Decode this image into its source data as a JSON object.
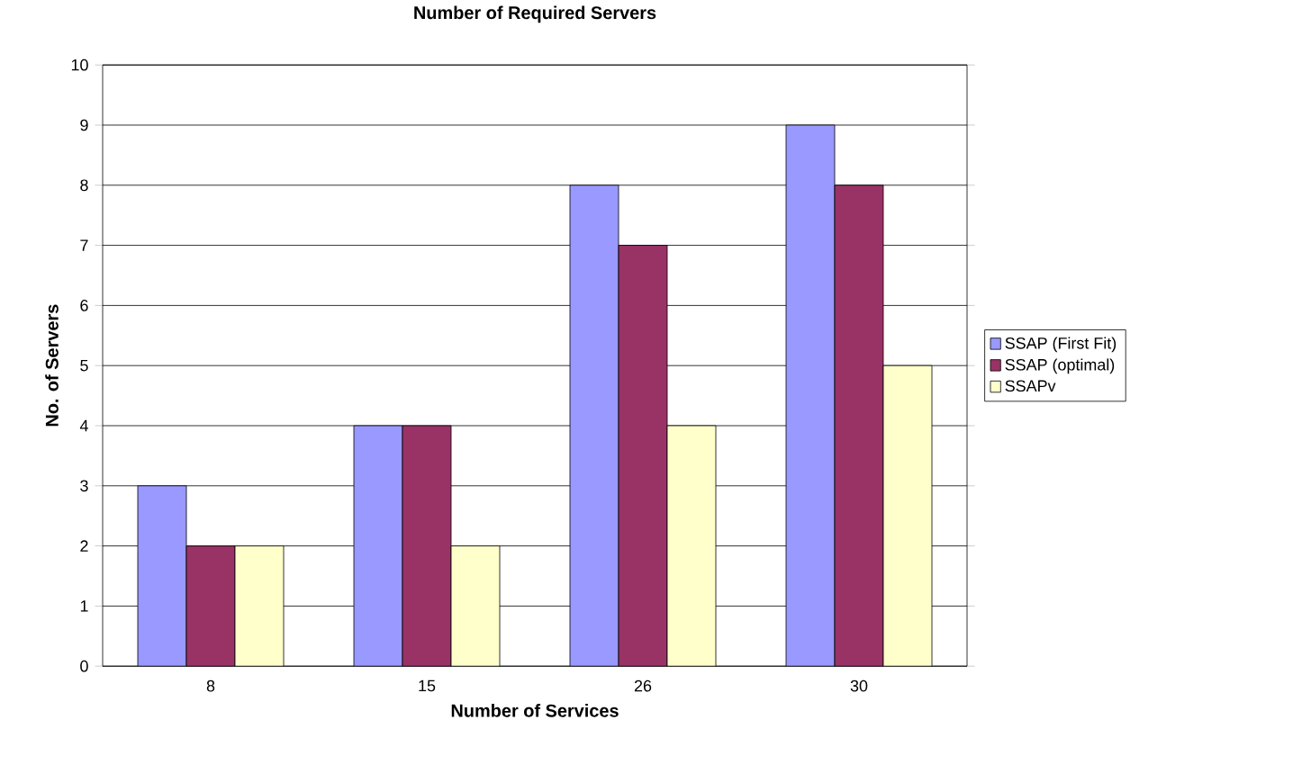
{
  "chart_data": {
    "type": "bar",
    "title": "Number of Required Servers",
    "xlabel": "Number of Services",
    "ylabel": "No. of Servers",
    "categories": [
      "8",
      "15",
      "26",
      "30"
    ],
    "series": [
      {
        "name": "SSAP (First Fit)",
        "color": "#9999ff",
        "values": [
          3,
          4,
          8,
          9
        ]
      },
      {
        "name": "SSAP (optimal)",
        "color": "#993366",
        "values": [
          2,
          4,
          7,
          8
        ]
      },
      {
        "name": "SSAPv",
        "color": "#ffffcc",
        "values": [
          2,
          2,
          4,
          5
        ]
      }
    ],
    "ylim": [
      0,
      10
    ],
    "yticks": [
      0,
      1,
      2,
      3,
      4,
      5,
      6,
      7,
      8,
      9,
      10
    ],
    "grid": "y",
    "legend": "right"
  }
}
